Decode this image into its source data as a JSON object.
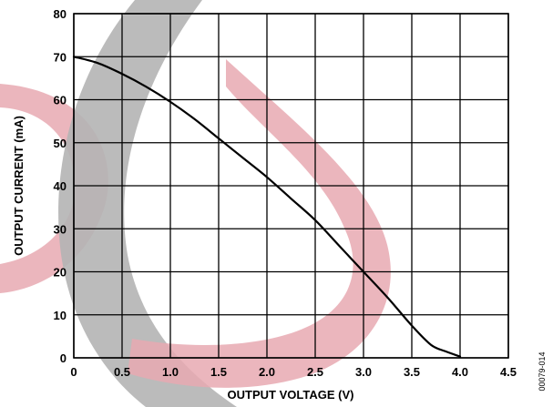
{
  "chart_data": {
    "type": "line",
    "xlabel": "OUTPUT VOLTAGE (V)",
    "ylabel": "OUTPUT CURRENT (mA)",
    "xlim": [
      0,
      4.5
    ],
    "ylim": [
      0,
      80
    ],
    "xticks": [
      0,
      0.5,
      1.0,
      1.5,
      2.0,
      2.5,
      3.0,
      3.5,
      4.0,
      4.5
    ],
    "xtick_labels": [
      "0",
      "0.5",
      "1.0",
      "1.5",
      "2.0",
      "2.5",
      "3.0",
      "3.5",
      "4.0",
      "4.5"
    ],
    "yticks": [
      0,
      10,
      20,
      30,
      40,
      50,
      60,
      70,
      80
    ],
    "ytick_labels": [
      "0",
      "10",
      "20",
      "30",
      "40",
      "50",
      "60",
      "70",
      "80"
    ],
    "grid": true,
    "series": [
      {
        "x": [
          0,
          0.25,
          0.5,
          0.75,
          1.0,
          1.25,
          1.5,
          1.75,
          2.0,
          2.25,
          2.5,
          2.75,
          3.0,
          3.25,
          3.5,
          3.7,
          3.85,
          4.0
        ],
        "y": [
          70,
          68.5,
          66,
          63,
          59.5,
          55.5,
          51,
          46.5,
          42,
          37,
          32,
          26,
          20,
          14,
          7.5,
          3,
          1.5,
          0.3
        ]
      }
    ],
    "line_color": "#000000"
  },
  "figure_id": "00079-014",
  "watermark_colors": {
    "gray": "#b4b4b4",
    "pink": "#e8a9b2"
  }
}
